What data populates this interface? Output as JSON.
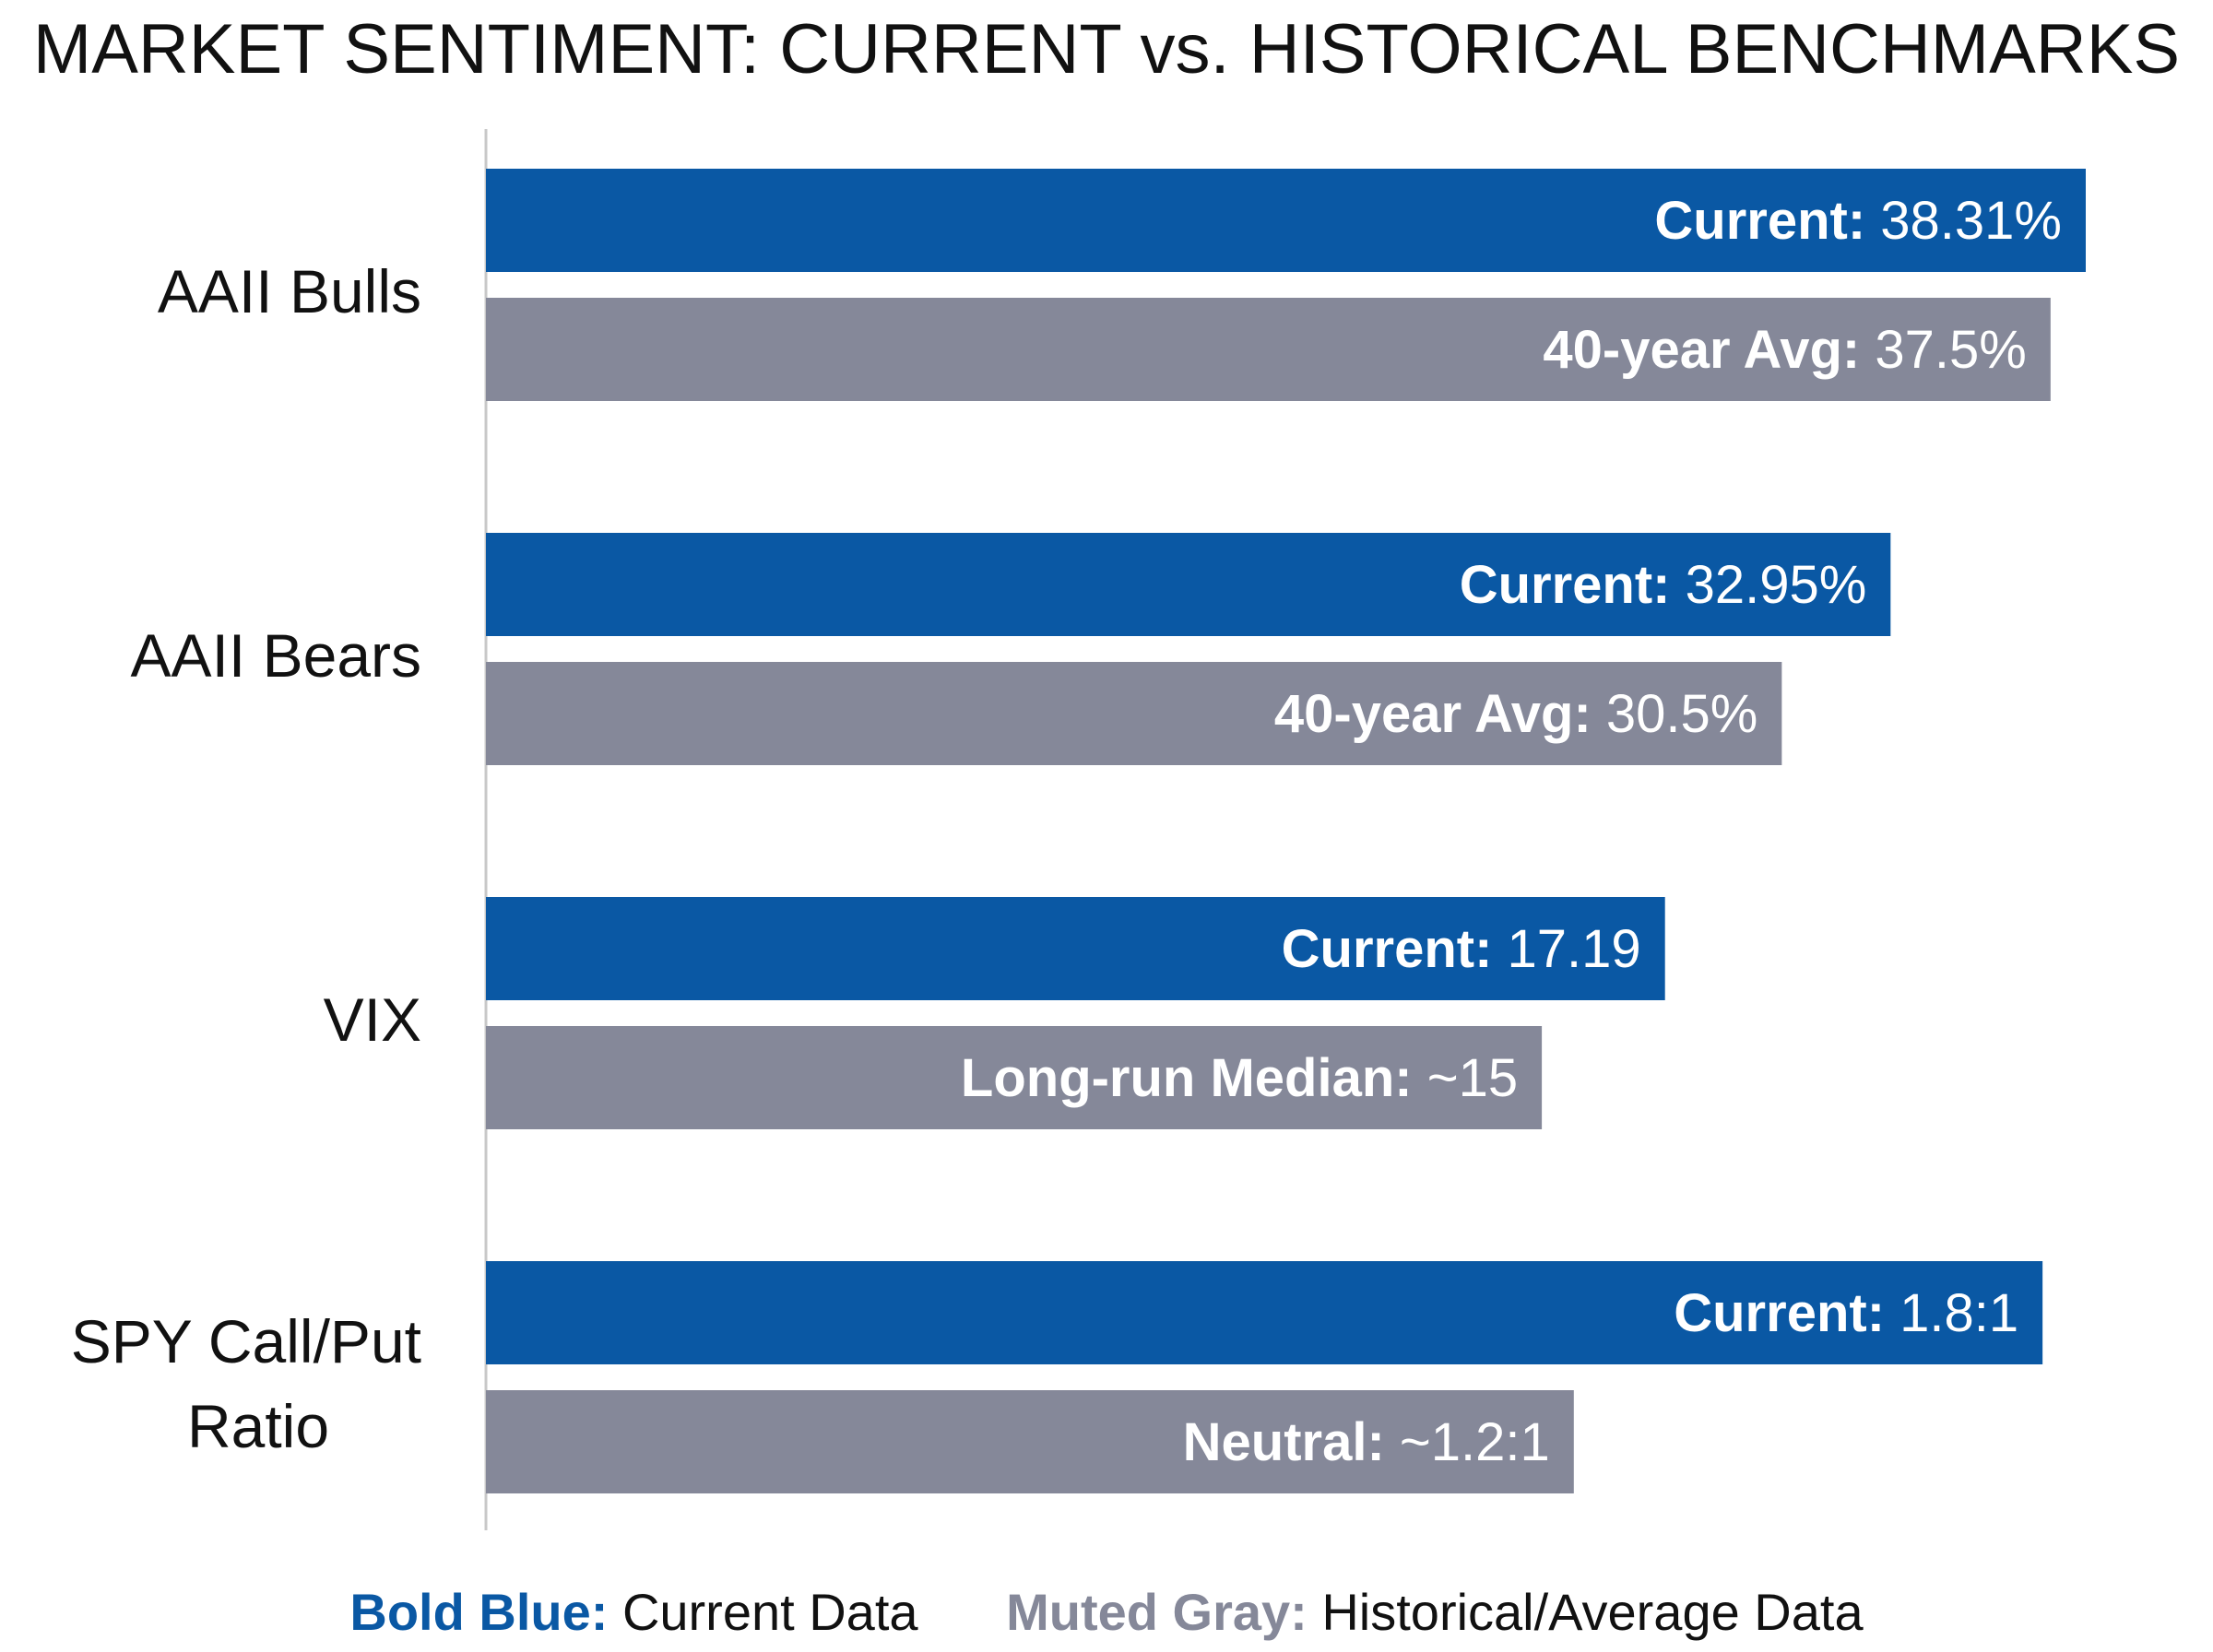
{
  "colors": {
    "current": "#0a58a4",
    "historical": "#858899",
    "axis": "#c8c8c8"
  },
  "legend": {
    "current_key": "Bold Blue:",
    "current_desc": " Current Data",
    "historical_key": "Muted Gray:",
    "historical_desc": " Historical/Average Data"
  },
  "chart_data": {
    "type": "bar",
    "orientation": "horizontal",
    "title": "MARKET SENTIMENT: CURRENT vs. HISTORICAL BENCHMARKS",
    "xlabel": "",
    "ylabel": "",
    "grid": false,
    "legend_position": "bottom",
    "categories": [
      [
        "AAII Bulls"
      ],
      [
        "AAII Bears"
      ],
      [
        "VIX"
      ],
      [
        "SPY Call/Put",
        "Ratio"
      ]
    ],
    "series": [
      {
        "name": "Current Data",
        "values": [
          1.0,
          0.878,
          0.737,
          0.973
        ],
        "labels": [
          {
            "prefix": "Current:",
            "value": " 38.31%"
          },
          {
            "prefix": "Current:",
            "value": " 32.95%"
          },
          {
            "prefix": "Current:",
            "value": " 17.19"
          },
          {
            "prefix": "Current:",
            "value": " 1.8:1"
          }
        ]
      },
      {
        "name": "Historical/Average Data",
        "values": [
          0.978,
          0.81,
          0.66,
          0.68
        ],
        "labels": [
          {
            "prefix": "40-year Avg:",
            "value": " 37.5%"
          },
          {
            "prefix": "40-year Avg:",
            "value": " 30.5%"
          },
          {
            "prefix": "Long-run Median:",
            "value": " ~15"
          },
          {
            "prefix": "Neutral:",
            "value": " ~1.2:1"
          }
        ]
      }
    ]
  }
}
